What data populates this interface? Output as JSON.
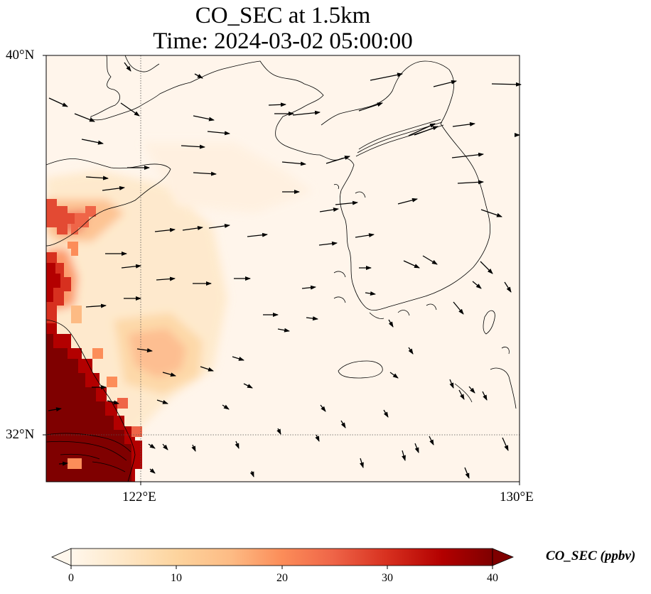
{
  "title": {
    "line1": "CO_SEC at 1.5km",
    "line2": "Time: 2024-03-02 05:00:00"
  },
  "map": {
    "variable": "CO_SEC",
    "level": "1.5km",
    "time": "2024-03-02 05:00:00",
    "lon_range": [
      117,
      130
    ],
    "lat_range": [
      30.75,
      40
    ],
    "lat_ticks": [
      {
        "value": 40,
        "label": "40°N"
      },
      {
        "value": 32,
        "label": "32°N"
      }
    ],
    "lon_ticks": [
      {
        "value": 122,
        "label": "122°E"
      },
      {
        "value": 130,
        "label": "130°E"
      }
    ],
    "gridlines": "dotted",
    "background_color": "#fff5eb",
    "coastline_color": "#000000",
    "features": [
      "Shandong Peninsula",
      "Liaodong Peninsula",
      "Korean Peninsula",
      "Jeju Island",
      "Yangtze River estuary",
      "Yellow Sea"
    ],
    "concentration_field": {
      "description": "CO_SEC concentration in ppbv",
      "max_region": "Chinese east coast (Jiangsu / Shanghai), values above 40",
      "secondary_plume": "offshore near 122.5°E 33.5°N, about 18 ppbv"
    },
    "wind_vectors": "black arrows; westerly flow over the Yellow Sea and Korea, turning north-westerly to south-eastward in the south"
  },
  "colorbar": {
    "label": "CO_SEC (ppbv)",
    "ticks": [
      "0",
      "10",
      "20",
      "30",
      "40"
    ],
    "min": 0,
    "max": 40,
    "extend": "both",
    "colormap": "OrRd",
    "colors": [
      "#fff7ec",
      "#fee8c8",
      "#fdd49e",
      "#fdbb84",
      "#fc8d59",
      "#ef6548",
      "#d7301f",
      "#b30000",
      "#7f0000"
    ]
  }
}
